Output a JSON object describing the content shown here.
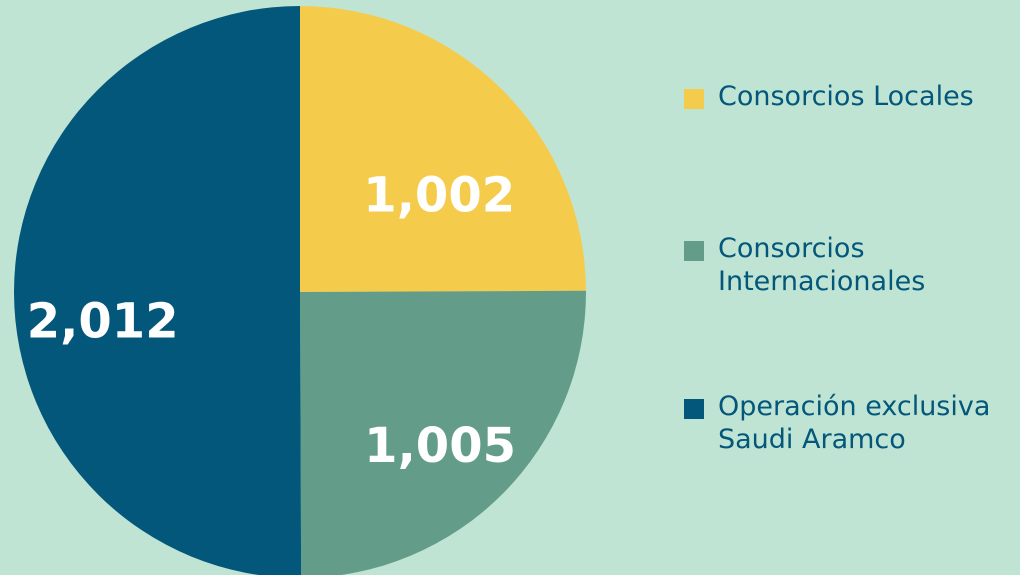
{
  "chart_data": {
    "type": "pie",
    "categories": [
      "Consorcios Locales",
      "Consorcios Internacionales",
      "Operación exclusiva Saudi Aramco"
    ],
    "values": [
      1002,
      1005,
      2012
    ],
    "value_labels": [
      "1,002",
      "1,005",
      "2,012"
    ],
    "colors": [
      "#f5cb4c",
      "#639d8a",
      "#03577a"
    ],
    "legend": "right"
  }
}
